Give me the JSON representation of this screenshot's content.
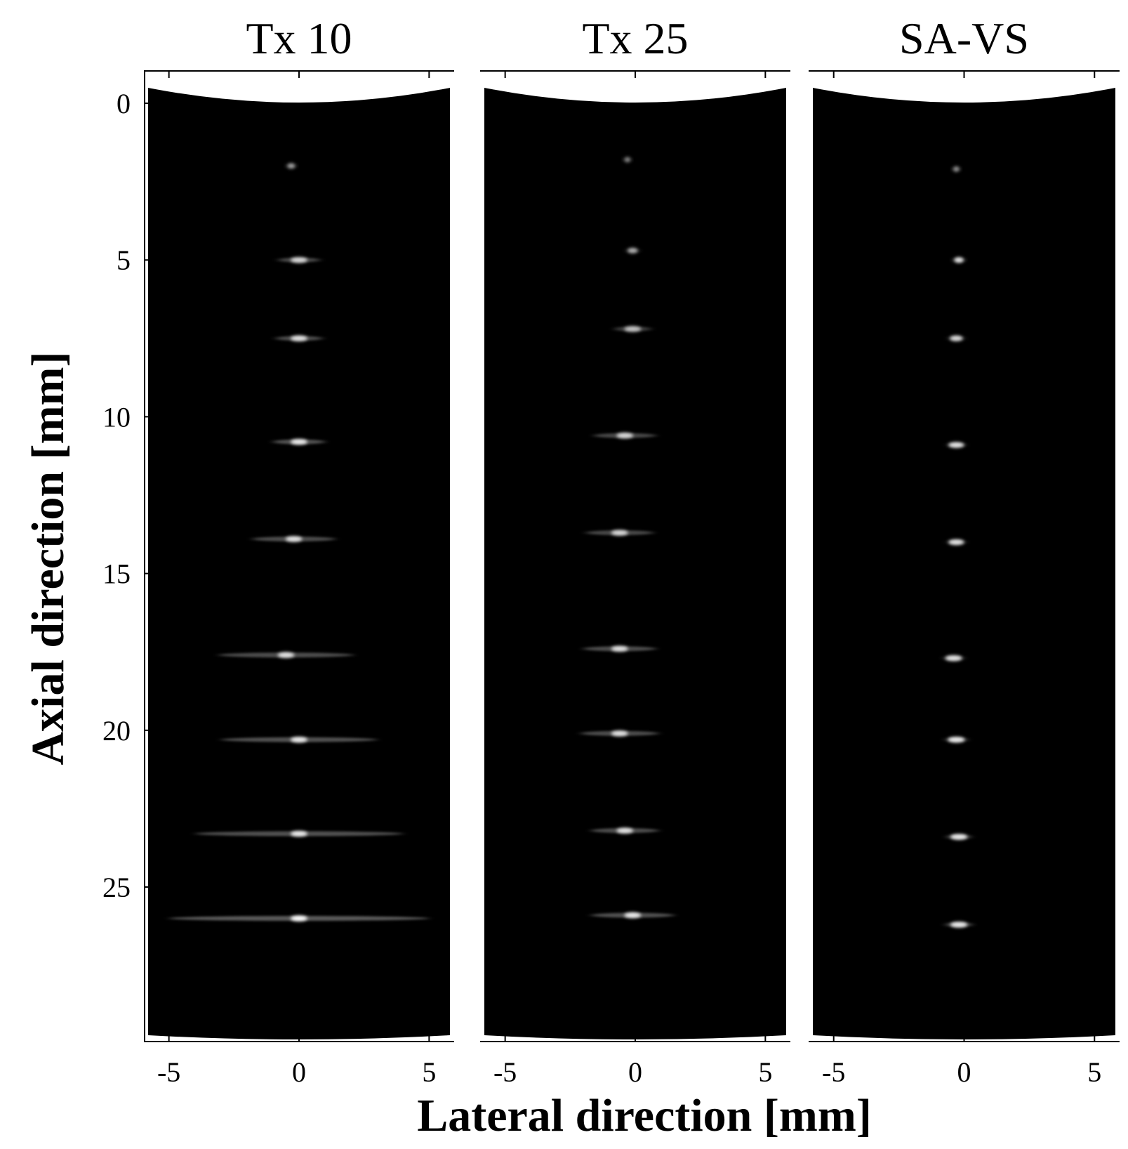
{
  "chart_data": {
    "type": "heatmap",
    "colormap": "gray",
    "background_color": "#000000",
    "xlabel": "Lateral direction [mm]",
    "ylabel": "Axial direction [mm]",
    "xlim": [
      -5.8,
      5.8
    ],
    "ylim": [
      29.9,
      -0.5
    ],
    "x_ticks": [
      -5,
      0,
      5
    ],
    "x_tick_labels": [
      "-5",
      "0",
      "5"
    ],
    "y_ticks": [
      0,
      5,
      10,
      15,
      20,
      25
    ],
    "y_tick_labels": [
      "0",
      "5",
      "10",
      "15",
      "20",
      "25"
    ],
    "grid": false,
    "panels": [
      {
        "title": "Tx 10",
        "point_targets": [
          {
            "x": -0.3,
            "depth": 2.0,
            "intensity": 0.55,
            "half_width": 0.15
          },
          {
            "x": 0.0,
            "depth": 5.0,
            "intensity": 0.8,
            "half_width": 0.8
          },
          {
            "x": 0.0,
            "depth": 7.5,
            "intensity": 0.85,
            "half_width": 0.9
          },
          {
            "x": 0.0,
            "depth": 10.8,
            "intensity": 0.9,
            "half_width": 1.0
          },
          {
            "x": -0.2,
            "depth": 13.9,
            "intensity": 0.85,
            "half_width": 1.6
          },
          {
            "x": -0.5,
            "depth": 17.6,
            "intensity": 0.85,
            "half_width": 2.6
          },
          {
            "x": 0.0,
            "depth": 20.3,
            "intensity": 0.9,
            "half_width": 3.0
          },
          {
            "x": 0.0,
            "depth": 23.3,
            "intensity": 0.9,
            "half_width": 4.0
          },
          {
            "x": 0.0,
            "depth": 26.0,
            "intensity": 1.0,
            "half_width": 5.0
          }
        ]
      },
      {
        "title": "Tx 25",
        "point_targets": [
          {
            "x": -0.3,
            "depth": 1.8,
            "intensity": 0.45,
            "half_width": 0.12
          },
          {
            "x": -0.1,
            "depth": 4.7,
            "intensity": 0.6,
            "half_width": 0.2
          },
          {
            "x": -0.1,
            "depth": 7.2,
            "intensity": 0.7,
            "half_width": 0.7
          },
          {
            "x": -0.4,
            "depth": 10.6,
            "intensity": 0.8,
            "half_width": 1.2
          },
          {
            "x": -0.6,
            "depth": 13.7,
            "intensity": 0.8,
            "half_width": 1.3
          },
          {
            "x": -0.6,
            "depth": 17.4,
            "intensity": 0.85,
            "half_width": 1.4
          },
          {
            "x": -0.6,
            "depth": 20.1,
            "intensity": 0.85,
            "half_width": 1.5
          },
          {
            "x": -0.4,
            "depth": 23.2,
            "intensity": 0.85,
            "half_width": 1.3
          },
          {
            "x": -0.1,
            "depth": 25.9,
            "intensity": 0.9,
            "half_width": 1.6
          }
        ]
      },
      {
        "title": "SA-VS",
        "point_targets": [
          {
            "x": -0.3,
            "depth": 2.1,
            "intensity": 0.5,
            "half_width": 0.12
          },
          {
            "x": -0.2,
            "depth": 5.0,
            "intensity": 0.85,
            "half_width": 0.18
          },
          {
            "x": -0.3,
            "depth": 7.5,
            "intensity": 0.8,
            "half_width": 0.25
          },
          {
            "x": -0.3,
            "depth": 10.9,
            "intensity": 0.85,
            "half_width": 0.3
          },
          {
            "x": -0.3,
            "depth": 14.0,
            "intensity": 0.85,
            "half_width": 0.3
          },
          {
            "x": -0.4,
            "depth": 17.7,
            "intensity": 0.85,
            "half_width": 0.35
          },
          {
            "x": -0.3,
            "depth": 20.3,
            "intensity": 0.9,
            "half_width": 0.4
          },
          {
            "x": -0.2,
            "depth": 23.4,
            "intensity": 0.9,
            "half_width": 0.45
          },
          {
            "x": -0.2,
            "depth": 26.2,
            "intensity": 0.9,
            "half_width": 0.5
          }
        ]
      }
    ]
  }
}
